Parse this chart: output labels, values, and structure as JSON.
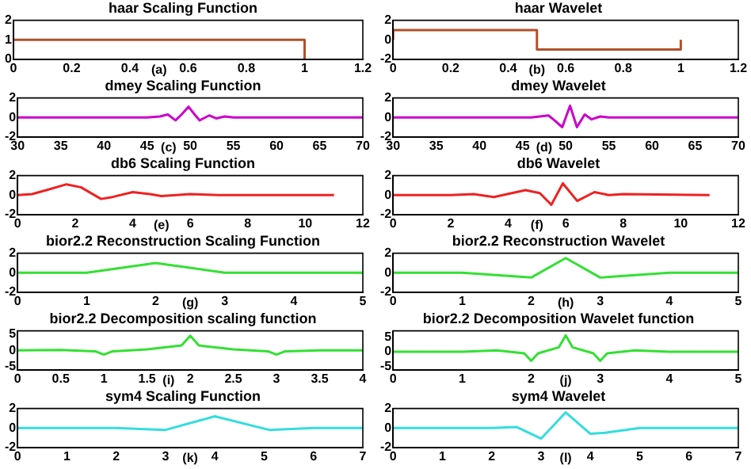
{
  "chart_data": [
    {
      "type": "line",
      "title": "haar Scaling Function",
      "x": [
        0,
        1,
        1
      ],
      "series": [
        {
          "color": "#b0502a",
          "values": [
            1,
            1,
            0
          ]
        }
      ],
      "xlim": [
        0,
        1.2
      ],
      "xticks": [
        0,
        0.2,
        0.4,
        0.6,
        0.8,
        1,
        1.2
      ],
      "ylim": [
        0,
        2
      ],
      "yticks": [
        0,
        1,
        2
      ],
      "annotations": [
        "(a)"
      ]
    },
    {
      "type": "line",
      "title": "haar Wavelet",
      "x": [
        0,
        0,
        0.5,
        0.5,
        1,
        1
      ],
      "series": [
        {
          "color": "#b0502a",
          "values": [
            0,
            1,
            1,
            -1,
            -1,
            0
          ]
        }
      ],
      "xlim": [
        0,
        1.2
      ],
      "xticks": [
        0,
        0.2,
        0.4,
        0.6,
        0.8,
        1,
        1.2
      ],
      "ylim": [
        -2,
        2
      ],
      "yticks": [
        -2,
        0,
        2
      ],
      "annotations": [
        "(b)"
      ]
    },
    {
      "type": "line",
      "title": "dmey Scaling Function",
      "x": [
        30,
        45,
        46.5,
        47.4,
        48.3,
        49,
        49.8,
        50.6,
        51.1,
        52.2,
        53,
        54,
        55,
        70
      ],
      "series": [
        {
          "color": "#cc00cc",
          "values": [
            0,
            0,
            0.1,
            0.3,
            -0.3,
            0.3,
            1.1,
            0.2,
            -0.3,
            0.2,
            -0.1,
            0.1,
            0,
            0
          ]
        }
      ],
      "xlim": [
        30,
        70
      ],
      "xticks": [
        30,
        35,
        40,
        45,
        50,
        55,
        60,
        65,
        70
      ],
      "ylim": [
        -2,
        2
      ],
      "yticks": [
        -2,
        0,
        2
      ],
      "annotations": [
        "(c)"
      ]
    },
    {
      "type": "line",
      "title": "dmey Wavelet",
      "x": [
        30,
        46,
        47,
        48,
        48.7,
        49.6,
        50.5,
        51.3,
        52.2,
        53,
        54,
        55,
        70
      ],
      "series": [
        {
          "color": "#cc00cc",
          "values": [
            0,
            0,
            0.1,
            0.2,
            -0.3,
            -1,
            1.2,
            -1,
            0.3,
            -0.2,
            0.1,
            0,
            0
          ]
        }
      ],
      "xlim": [
        30,
        70
      ],
      "xticks": [
        30,
        35,
        40,
        45,
        50,
        55,
        60,
        65,
        70
      ],
      "ylim": [
        -2,
        2
      ],
      "yticks": [
        -2,
        0,
        2
      ],
      "annotations": [
        "(d)"
      ]
    },
    {
      "type": "line",
      "title": "db6 Scaling Function",
      "x": [
        0,
        0.5,
        1,
        1.7,
        2.2,
        2.9,
        3.3,
        4,
        4.6,
        5,
        6,
        7,
        11
      ],
      "series": [
        {
          "color": "#ee2222",
          "values": [
            0,
            0.1,
            0.5,
            1.1,
            0.8,
            -0.4,
            -0.2,
            0.3,
            0.1,
            -0.1,
            0.1,
            0,
            0
          ]
        }
      ],
      "xlim": [
        0,
        12
      ],
      "xticks": [
        0,
        2,
        4,
        6,
        8,
        10,
        12
      ],
      "ylim": [
        -2,
        2
      ],
      "yticks": [
        -2,
        0,
        2
      ],
      "annotations": [
        "(e)"
      ]
    },
    {
      "type": "line",
      "title": "db6 Wavelet",
      "x": [
        0,
        2,
        2.8,
        3.5,
        4.6,
        5.1,
        5.5,
        5.9,
        6.4,
        7,
        7.5,
        8,
        11
      ],
      "series": [
        {
          "color": "#ee2222",
          "values": [
            0,
            0,
            0.1,
            -0.2,
            0.5,
            0.2,
            -1,
            1.2,
            -0.6,
            0.3,
            0,
            0.1,
            0
          ]
        }
      ],
      "xlim": [
        0,
        12
      ],
      "xticks": [
        0,
        2,
        4,
        6,
        8,
        10,
        12
      ],
      "ylim": [
        -2,
        2
      ],
      "yticks": [
        -2,
        0,
        2
      ],
      "annotations": [
        "(f)"
      ]
    },
    {
      "type": "line",
      "title": "bior2.2 Reconstruction Scaling Function",
      "x": [
        0,
        1,
        2,
        3,
        5
      ],
      "series": [
        {
          "color": "#33e033",
          "values": [
            0,
            0,
            1,
            0,
            0
          ]
        }
      ],
      "xlim": [
        0,
        5
      ],
      "xticks": [
        0,
        1,
        2,
        3,
        4,
        5
      ],
      "ylim": [
        -2,
        2
      ],
      "yticks": [
        -2,
        0,
        2
      ],
      "annotations": [
        "(g)"
      ]
    },
    {
      "type": "line",
      "title": "bior2.2 Reconstruction Wavelet",
      "x": [
        0,
        1,
        2,
        2.5,
        3,
        4,
        5
      ],
      "series": [
        {
          "color": "#33e033",
          "values": [
            0,
            0,
            -0.5,
            1.5,
            -0.5,
            0,
            0
          ]
        }
      ],
      "xlim": [
        0,
        5
      ],
      "xticks": [
        0,
        1,
        2,
        3,
        4,
        5
      ],
      "ylim": [
        -2,
        2
      ],
      "yticks": [
        -2,
        0,
        2
      ],
      "annotations": [
        "(h)"
      ]
    },
    {
      "type": "line",
      "title": "bior2.2 Decomposition scaling function",
      "x": [
        0,
        0.5,
        0.9,
        1,
        1.1,
        1.5,
        1.9,
        2,
        2.1,
        2.5,
        2.9,
        3,
        3.1,
        3.5,
        4
      ],
      "series": [
        {
          "color": "#33e033",
          "values": [
            0,
            0.1,
            -0.3,
            -1.3,
            -0.3,
            0.3,
            1.5,
            4.5,
            1.5,
            0.3,
            -0.3,
            -1.3,
            -0.3,
            0,
            0
          ]
        }
      ],
      "xlim": [
        0,
        4
      ],
      "xticks": [
        0,
        0.5,
        1,
        1.5,
        2,
        2.5,
        3,
        3.5,
        4
      ],
      "ylim": [
        -6,
        6
      ],
      "yticks": [
        -5,
        0,
        5
      ],
      "annotations": [
        "(i)"
      ]
    },
    {
      "type": "line",
      "title": "bior2.2 Decomposition Wavelet function",
      "x": [
        0,
        1,
        1.5,
        1.9,
        2,
        2.1,
        2.4,
        2.5,
        2.6,
        2.9,
        3,
        3.1,
        3.5,
        4,
        5
      ],
      "series": [
        {
          "color": "#33e033",
          "values": [
            0,
            0,
            0.5,
            -0.5,
            -3,
            -0.5,
            1.5,
            5.5,
            1.5,
            -0.5,
            -3,
            -0.5,
            0.5,
            0,
            0
          ]
        }
      ],
      "xlim": [
        0,
        5
      ],
      "xticks": [
        0,
        1,
        2,
        3,
        4,
        5
      ],
      "ylim": [
        -6,
        7
      ],
      "yticks": [
        -5,
        0,
        5
      ],
      "annotations": [
        "(j)"
      ]
    },
    {
      "type": "line",
      "title": "sym4 Scaling Function",
      "x": [
        0,
        2,
        3,
        4,
        5.1,
        6,
        7
      ],
      "series": [
        {
          "color": "#33dddd",
          "values": [
            0,
            0,
            -0.2,
            1.2,
            -0.2,
            0,
            0
          ]
        }
      ],
      "xlim": [
        0,
        7
      ],
      "xticks": [
        0,
        1,
        2,
        3,
        4,
        5,
        6,
        7
      ],
      "ylim": [
        -2,
        2
      ],
      "yticks": [
        -2,
        0,
        2
      ],
      "annotations": [
        "(k)"
      ]
    },
    {
      "type": "line",
      "title": "sym4 Wavelet",
      "x": [
        0,
        2,
        2.5,
        3,
        3.5,
        4,
        4.3,
        5,
        7
      ],
      "series": [
        {
          "color": "#33dddd",
          "values": [
            0,
            0,
            0.1,
            -1.1,
            1.6,
            -0.6,
            -0.5,
            0,
            0
          ]
        }
      ],
      "xlim": [
        0,
        7
      ],
      "xticks": [
        0,
        1,
        2,
        3,
        4,
        5,
        6,
        7
      ],
      "ylim": [
        -2,
        2
      ],
      "yticks": [
        -2,
        0,
        2
      ],
      "annotations": [
        "(l)"
      ]
    }
  ]
}
